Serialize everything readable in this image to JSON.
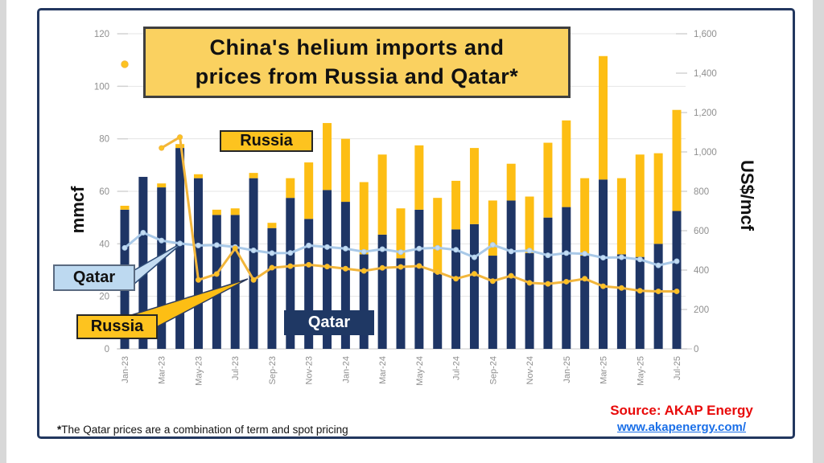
{
  "title": {
    "line1": "China's helium imports and",
    "line2": "prices from Russia and Qatar*"
  },
  "annotations": {
    "russia_bars_label": "Russia",
    "qatar_bars_label": "Qatar",
    "qatar_price_label": "Qatar",
    "russia_price_label": "Russia"
  },
  "footnote": {
    "star": "*",
    "text": "The Qatar prices are a combination of term and spot pricing"
  },
  "source": {
    "label": "Source: AKAP Energy",
    "url": "www.akapenergy.com/"
  },
  "colors": {
    "qatar_bar": "#1e3565",
    "russia_bar": "#fdbe14",
    "qatar_line": "#a9c9e8",
    "qatar_dot": "#c4dcf2",
    "russia_line": "#f2b63c",
    "russia_dot": "#fdc31f",
    "grid": "#e4e4e4",
    "baseline": "#c8c8c8",
    "tick_stub": "#d2d2d2",
    "tick_text": "#8f8f8f",
    "frame_border": "#22375f",
    "title_fill": "#fad160",
    "source_red": "#e80a0a",
    "url_blue": "#1a6fe8"
  },
  "chart_data": {
    "type": "bar",
    "subtype": "stacked-bars-with-price-lines",
    "categories": [
      "Jan-23",
      "Feb-23",
      "Mar-23",
      "Apr-23",
      "May-23",
      "Jun-23",
      "Jul-23",
      "Aug-23",
      "Sep-23",
      "Oct-23",
      "Nov-23",
      "Dec-23",
      "Jan-24",
      "Feb-24",
      "Mar-24",
      "Apr-24",
      "May-24",
      "Jun-24",
      "Jul-24",
      "Aug-24",
      "Sep-24",
      "Oct-24",
      "Nov-24",
      "Dec-24",
      "Jan-25",
      "Feb-25",
      "Mar-25",
      "Apr-25",
      "May-25",
      "Jun-25",
      "Jul-25"
    ],
    "x_tick_labels": [
      "Jan-23",
      "Mar-23",
      "May-23",
      "Jul-23",
      "Sep-23",
      "Nov-23",
      "Jan-24",
      "Mar-24",
      "May-24",
      "Jul-24",
      "Sep-24",
      "Nov-24",
      "Jan-25",
      "Mar-25",
      "May-25",
      "Jul-25"
    ],
    "left_axis": {
      "label": "mmcf",
      "min": 0,
      "max": 120,
      "step": 20,
      "ticks": [
        0,
        20,
        40,
        60,
        80,
        100,
        120
      ]
    },
    "right_axis": {
      "label": "US$/mcf",
      "min": 0,
      "max": 1600,
      "step": 200,
      "ticks": [
        "0",
        "200",
        "400",
        "600",
        "800",
        "1,000",
        "1,200",
        "1,400",
        "1,600"
      ]
    },
    "grid": true,
    "legend_position": "floating-labels-on-chart",
    "bar_series": [
      {
        "name": "Qatar imports (mmcf)",
        "color_key": "qatar_bar",
        "values": [
          53,
          65.5,
          61.5,
          76.5,
          65,
          51,
          51,
          65,
          46,
          57.5,
          49.5,
          60.5,
          56,
          36,
          43.5,
          34.5,
          53,
          29,
          45.5,
          47.5,
          35.5,
          56.5,
          36.5,
          50,
          54,
          35.5,
          64.5,
          36,
          35,
          40,
          52.5
        ]
      },
      {
        "name": "Russia imports (mmcf)",
        "color_key": "russia_bar",
        "values": [
          1.5,
          0,
          1.5,
          1.5,
          1.5,
          2,
          2.5,
          2,
          2,
          7.5,
          21.5,
          25.5,
          24,
          27.5,
          30.5,
          19,
          24.5,
          28.5,
          18.5,
          29,
          21,
          14,
          21.5,
          28.5,
          33,
          29.5,
          47,
          29,
          39,
          34.5,
          38.5
        ]
      }
    ],
    "line_series": [
      {
        "name": "Qatar price (US$/mcf)",
        "axis": "right",
        "color_key": "qatar_line",
        "values": [
          513,
          590,
          550,
          535,
          525,
          527,
          517,
          500,
          486,
          487,
          525,
          517,
          509,
          493,
          506,
          491,
          509,
          513,
          503,
          465,
          528,
          495,
          499,
          475,
          486,
          483,
          463,
          465,
          454,
          424,
          445
        ]
      },
      {
        "name": "Russia price (US$/mcf)",
        "axis": "right",
        "color_key": "russia_line",
        "values": [
          1445,
          null,
          1020,
          1075,
          350,
          380,
          510,
          350,
          412,
          420,
          427,
          418,
          407,
          396,
          411,
          416,
          421,
          390,
          356,
          381,
          344,
          371,
          335,
          330,
          341,
          356,
          318,
          309,
          295,
          292,
          292
        ]
      }
    ]
  }
}
